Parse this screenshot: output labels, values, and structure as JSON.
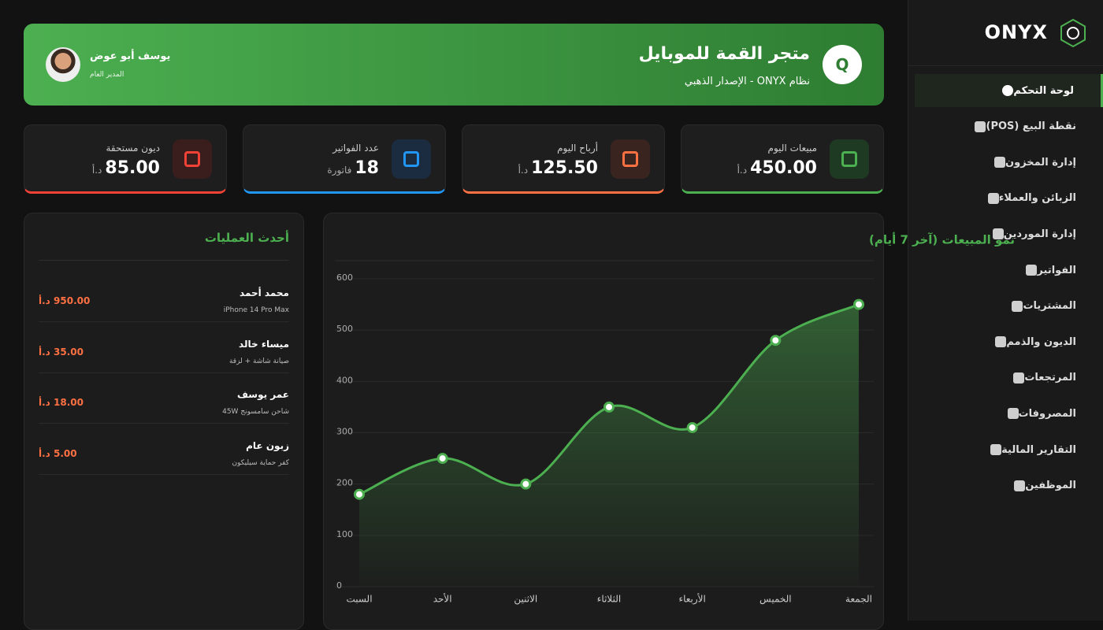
{
  "sidebar": {
    "brand": "ONYX",
    "menu": [
      "لوحة التحكم",
      "نقطة البيع (POS)",
      "إدارة المخزون",
      "الزبائن والعملاء",
      "إدارة الموردين",
      "الفواتير",
      "المشتريات",
      "الديون والذمم",
      "المرتجعات",
      "المصروفات",
      "التقارير المالية",
      "الموظفين"
    ]
  },
  "header": {
    "logo": "Q",
    "title": "متجر القمة للموبايل",
    "subtitle": "نظام ONYX - الإصدار الذهبي",
    "user_name": "يوسف أبو عوض",
    "user_role": "المدير العام"
  },
  "stats": [
    {
      "label": "مبيعات اليوم",
      "value": "450.00",
      "unit": "د.أ"
    },
    {
      "label": "أرباح اليوم",
      "value": "125.50",
      "unit": "د.أ"
    },
    {
      "label": "عدد الفواتير",
      "value": "18",
      "unit": "فاتورة"
    },
    {
      "label": "ديون مستحقة",
      "value": "85.00",
      "unit": "د.أ"
    }
  ],
  "transactions": {
    "title": "أحدث العمليات",
    "items": [
      {
        "name": "محمد أحمد",
        "detail": "iPhone 14 Pro Max",
        "amount": "950.00 د.أ"
      },
      {
        "name": "ميساء خالد",
        "detail": "صيانة شاشة + لزقة",
        "amount": "35.00 د.أ"
      },
      {
        "name": "عمر يوسف",
        "detail": "شاحن سامسونج 45W",
        "amount": "18.00 د.أ"
      },
      {
        "name": "زبون عام",
        "detail": "كفر حماية سيليكون",
        "amount": "5.00 د.أ"
      }
    ]
  },
  "chart_data": {
    "type": "line",
    "title": "نمو المبيعات (آخر 7 أيام)",
    "categories": [
      "السبت",
      "الأحد",
      "الاثنين",
      "الثلاثاء",
      "الأربعاء",
      "الخميس",
      "الجمعة"
    ],
    "values": [
      180,
      250,
      200,
      350,
      310,
      480,
      550
    ],
    "color": "#4caf50",
    "ylim": [
      0,
      600
    ],
    "yticks": [
      0,
      100,
      200,
      300,
      400,
      500,
      600
    ],
    "grid": true
  }
}
